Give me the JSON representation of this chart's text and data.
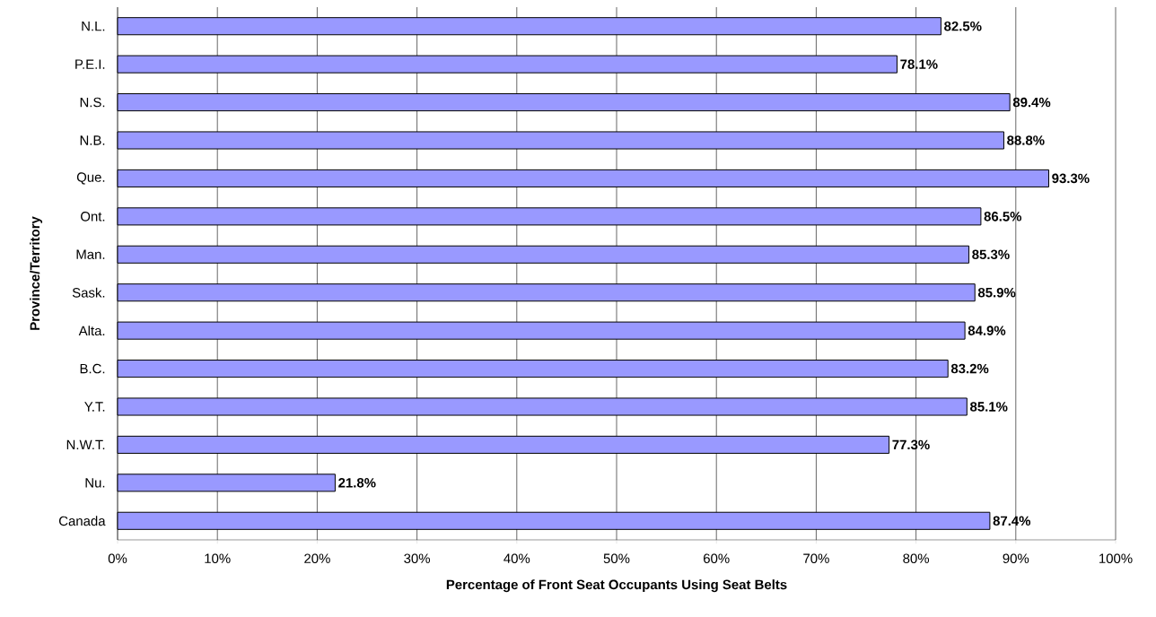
{
  "chart_data": {
    "type": "bar",
    "orientation": "horizontal",
    "xlabel": "Percentage of Front Seat Occupants Using Seat Belts",
    "ylabel": "Province/Territory",
    "categories": [
      "N.L.",
      "P.E.I.",
      "N.S.",
      "N.B.",
      "Que.",
      "Ont.",
      "Man.",
      "Sask.",
      "Alta.",
      "B.C.",
      "Y.T.",
      "N.W.T.",
      "Nu.",
      "Canada"
    ],
    "values": [
      82.5,
      78.1,
      89.4,
      88.8,
      93.3,
      86.5,
      85.3,
      85.9,
      84.9,
      83.2,
      85.1,
      77.3,
      21.8,
      87.4
    ],
    "value_labels": [
      "82.5%",
      "78.1%",
      "89.4%",
      "88.8%",
      "93.3%",
      "86.5%",
      "85.3%",
      "85.9%",
      "84.9%",
      "83.2%",
      "85.1%",
      "77.3%",
      "21.8%",
      "87.4%"
    ],
    "color": "#9999ff",
    "xlim": [
      0,
      100
    ],
    "xticks": [
      {
        "value": 0,
        "label": "0%"
      },
      {
        "value": 10,
        "label": "10%"
      },
      {
        "value": 20,
        "label": "20%"
      },
      {
        "value": 30,
        "label": "30%"
      },
      {
        "value": 40,
        "label": "40%"
      },
      {
        "value": 50,
        "label": "50%"
      },
      {
        "value": 60,
        "label": "60%"
      },
      {
        "value": 70,
        "label": "70%"
      },
      {
        "value": 80,
        "label": "80%"
      },
      {
        "value": 90,
        "label": "90%"
      },
      {
        "value": 100,
        "label": "100%"
      }
    ],
    "grid": "x"
  }
}
